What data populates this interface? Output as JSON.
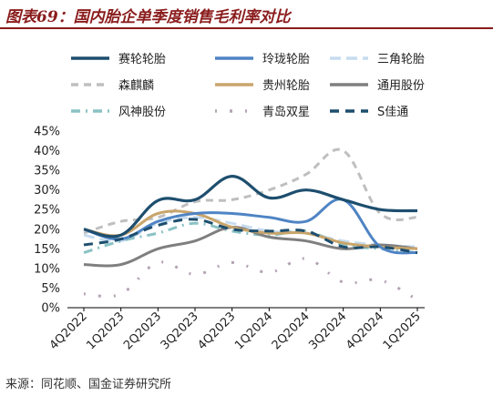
{
  "header": {
    "title": "图表69：国内胎企单季度销售毛利率对比"
  },
  "footer": {
    "source": "来源：同花顺、国金证券研究所"
  },
  "chart_data": {
    "type": "line",
    "title": "图表69：国内胎企单季度销售毛利率对比",
    "categories": [
      "4Q2022",
      "1Q2023",
      "2Q2023",
      "3Q2023",
      "4Q2023",
      "1Q2024",
      "2Q2024",
      "3Q2024",
      "4Q2024",
      "1Q2025"
    ],
    "ylim": [
      0,
      45
    ],
    "yticks": [
      "0%",
      "5%",
      "10%",
      "15%",
      "20%",
      "25%",
      "30%",
      "35%",
      "40%",
      "45%"
    ],
    "grid": false,
    "legend_position": "top",
    "series": [
      {
        "name": "赛轮轮胎",
        "color": "#1d4e6e",
        "dash": "solid",
        "width": 3.2,
        "values": [
          20.0,
          18.5,
          27.3,
          27.5,
          33.5,
          28.0,
          30.0,
          27.5,
          25.0,
          24.7
        ]
      },
      {
        "name": "玲珑轮胎",
        "color": "#4f84c4",
        "dash": "solid",
        "width": 3.0,
        "values": [
          20.0,
          17.5,
          22.0,
          24.0,
          24.0,
          23.0,
          22.0,
          27.5,
          15.5,
          14.0
        ]
      },
      {
        "name": "三角轮胎",
        "color": "#c7dcef",
        "dash": "longdash",
        "width": 3.0,
        "values": [
          18.5,
          17.0,
          21.5,
          23.0,
          21.5,
          19.5,
          19.0,
          17.0,
          16.0,
          15.5
        ]
      },
      {
        "name": "森麒麟",
        "color": "#bfbfbf",
        "dash": "dash",
        "width": 3.0,
        "values": [
          19.0,
          22.0,
          23.0,
          27.0,
          27.5,
          30.0,
          34.0,
          40.0,
          24.0,
          23.0
        ]
      },
      {
        "name": "贵州轮胎",
        "color": "#c9a56b",
        "dash": "solid",
        "width": 3.0,
        "values": [
          20.0,
          18.5,
          24.0,
          24.0,
          20.5,
          19.0,
          19.0,
          16.5,
          15.5,
          15.0
        ]
      },
      {
        "name": "通用股份",
        "color": "#7f7f7f",
        "dash": "solid",
        "width": 3.0,
        "values": [
          11.0,
          11.0,
          15.0,
          17.0,
          20.5,
          18.0,
          17.0,
          15.0,
          16.0,
          15.0
        ]
      },
      {
        "name": "风神股份",
        "color": "#8ac2c4",
        "dash": "dashdot",
        "width": 3.0,
        "values": [
          14.0,
          17.0,
          19.0,
          21.5,
          19.5,
          18.5,
          19.5,
          16.0,
          15.0,
          14.0
        ]
      },
      {
        "name": "青岛双星",
        "color": "#b3a3b3",
        "dash": "dashdotsparse",
        "width": 3.0,
        "values": [
          3.5,
          3.5,
          11.5,
          8.5,
          11.5,
          9.0,
          12.5,
          6.5,
          7.0,
          2.0
        ]
      },
      {
        "name": "S佳通",
        "color": "#1d4e6e",
        "dash": "bolddash",
        "width": 3.0,
        "values": [
          16.0,
          17.5,
          21.0,
          22.5,
          20.0,
          19.5,
          19.5,
          15.5,
          15.5,
          14.0
        ]
      }
    ]
  }
}
